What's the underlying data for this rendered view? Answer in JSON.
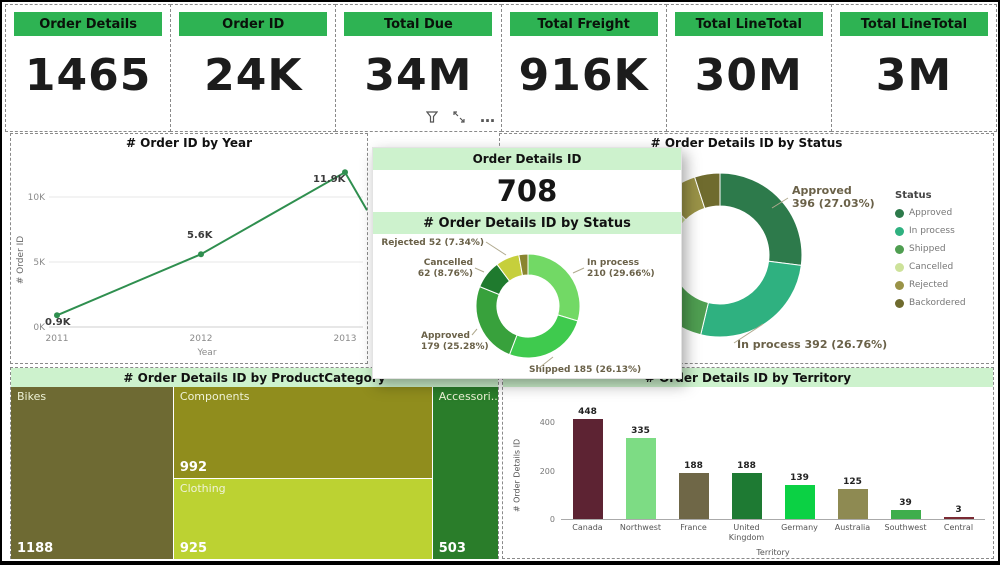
{
  "theme": {
    "kpi_header_bg": "#2eb353",
    "title_band_bg": "#cdf2cd",
    "accent_line": "#2f8f4f",
    "callout_text": "#6a6148",
    "axis_text": "#8a8a8a"
  },
  "kpis": [
    {
      "label": "Order Details",
      "value": "1465"
    },
    {
      "label": "Order ID",
      "value": "24K"
    },
    {
      "label": "Total Due",
      "value": "34M"
    },
    {
      "label": "Total Freight",
      "value": "916K"
    },
    {
      "label": "Total LineTotal",
      "value": "30M"
    },
    {
      "label": "Total LineTotal",
      "value": "3M"
    }
  ],
  "toolbar": {
    "more_label": "…"
  },
  "popup": {
    "header": "Order Details ID",
    "value": "708"
  },
  "chart_data": [
    {
      "type": "line",
      "title": "# Order ID by Year",
      "xlabel": "Year",
      "ylabel": "# Order ID",
      "x": [
        "2011",
        "2012",
        "2013"
      ],
      "values_thousands": [
        0.9,
        5.6,
        11.9
      ],
      "point_labels": [
        "0.9K",
        "5.6K",
        "11.9K"
      ],
      "yticks": [
        "0K",
        "5K",
        "10K"
      ],
      "ytick_values": [
        0,
        5,
        10
      ],
      "ylim_thousands": [
        0,
        13
      ]
    },
    {
      "type": "pie",
      "title": "# Order Details ID by Status",
      "legend_title": "Status",
      "legend_position": "right",
      "segments": [
        {
          "name": "Approved",
          "value": 396,
          "pct": 27.03,
          "callout": "Approved\n396 (27.03%)",
          "color": "#2d7a4b"
        },
        {
          "name": "In process",
          "value": 392,
          "pct": 26.76,
          "callout": "In process 392 (26.76%)",
          "color": "#2fb180"
        },
        {
          "name": "Shipped",
          "pct": 25.0,
          "estimated": true,
          "color": "#4f9e51"
        },
        {
          "name": "Cancelled",
          "pct": 8.9,
          "estimated": true,
          "color": "#cde29a"
        },
        {
          "name": "Rejected",
          "pct": 7.3,
          "estimated": true,
          "color": "#9a9347"
        },
        {
          "name": "Backordered",
          "pct": 5.01,
          "estimated": true,
          "color": "#6f6b2e"
        }
      ]
    },
    {
      "type": "pie",
      "title": "# Order Details ID by Status",
      "segments": [
        {
          "name": "In process",
          "value": 210,
          "pct": 29.66,
          "callout": "In process\n210 (29.66%)",
          "color": "#72d965"
        },
        {
          "name": "Shipped",
          "value": 185,
          "pct": 26.13,
          "callout": "Shipped 185 (26.13%)",
          "color": "#3fca4e"
        },
        {
          "name": "Approved",
          "value": 179,
          "pct": 25.28,
          "callout": "Approved\n179 (25.28%)",
          "color": "#38a13c"
        },
        {
          "name": "Cancelled",
          "value": 62,
          "pct": 8.76,
          "callout": "Cancelled\n62 (8.76%)",
          "color": "#1f7a2e"
        },
        {
          "name": "Rejected",
          "value": 52,
          "pct": 7.34,
          "callout": "Rejected 52 (7.34%)",
          "color": "#c6cf3c"
        },
        {
          "name": "Backordered",
          "pct": 2.83,
          "estimated": true,
          "color": "#8a8530"
        }
      ]
    },
    {
      "type": "treemap",
      "title": "# Order Details ID by ProductCategory",
      "items": [
        {
          "label": "Bikes",
          "value": "1188",
          "color": "#6e6a33"
        },
        {
          "label": "Components",
          "value": "992",
          "color": "#908d1d"
        },
        {
          "label": "Clothing",
          "value": "925",
          "color": "#bcd232"
        },
        {
          "label": "Accessori...",
          "value": "503",
          "color": "#2a7d2a"
        }
      ]
    },
    {
      "type": "bar",
      "title": "# Order Details ID by Territory",
      "xlabel": "Territory",
      "ylabel": "# Order Details ID",
      "categories": [
        "Canada",
        "Northwest",
        "France",
        "United Kingdom",
        "Germany",
        "Australia",
        "Southwest",
        "Central"
      ],
      "values": [
        448,
        335,
        188,
        188,
        139,
        125,
        39,
        3
      ],
      "colors": [
        "#5d2333",
        "#7ddc84",
        "#6f6747",
        "#1e7a33",
        "#0bd144",
        "#8e8a52",
        "#3fae4c",
        "#7a2a33"
      ],
      "yticks": [
        0,
        200,
        400
      ],
      "ylim": [
        0,
        450
      ]
    }
  ]
}
